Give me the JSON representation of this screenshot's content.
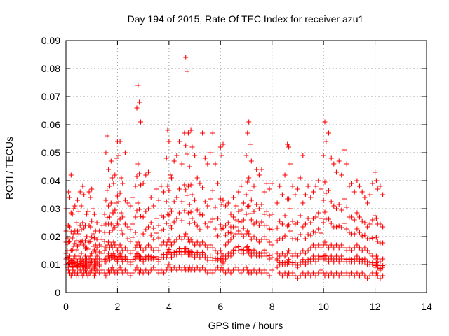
{
  "chart_data": {
    "type": "scatter",
    "title": "Day 194 of 2015, Rate Of TEC Index for receiver azu1",
    "xlabel": "GPS time / hours",
    "ylabel": "ROTI / TECUs",
    "xlim": [
      0,
      14
    ],
    "ylim": [
      0,
      0.09
    ],
    "xticks": [
      0,
      2,
      4,
      6,
      8,
      10,
      12,
      14
    ],
    "xtick_labels": [
      "0",
      "2",
      "4",
      "6",
      "8",
      "10",
      "12",
      "14"
    ],
    "yticks": [
      0,
      0.01,
      0.02,
      0.03,
      0.04,
      0.05,
      0.06,
      0.07,
      0.08,
      0.09
    ],
    "ytick_labels": [
      "0",
      "0.01",
      "0.02",
      "0.03",
      "0.04",
      "0.05",
      "0.06",
      "0.07",
      "0.08",
      "0.09"
    ],
    "grid": true,
    "marker": "+",
    "color": "#ff0000",
    "series": [
      {
        "name": "ROTI",
        "x": [
          0.0,
          0.05,
          0.1,
          0.15,
          0.2,
          0.25,
          0.3,
          0.35,
          0.4,
          0.45,
          0.5,
          0.55,
          0.6,
          0.65,
          0.7,
          0.75,
          0.8,
          0.85,
          0.9,
          0.95,
          1.0,
          1.05,
          1.1,
          1.15,
          1.2,
          1.3,
          1.4,
          1.5,
          1.55,
          1.6,
          1.65,
          1.7,
          1.75,
          1.8,
          1.85,
          1.9,
          1.95,
          2.0,
          2.05,
          2.1,
          2.15,
          2.2,
          2.3,
          2.4,
          2.5,
          2.6,
          2.7,
          2.75,
          2.8,
          2.85,
          2.9,
          3.0,
          3.1,
          3.2,
          3.3,
          3.4,
          3.5,
          3.6,
          3.7,
          3.8,
          3.9,
          3.95,
          4.0,
          4.05,
          4.1,
          4.2,
          4.3,
          4.4,
          4.5,
          4.6,
          4.65,
          4.7,
          4.75,
          4.8,
          4.85,
          4.9,
          5.0,
          5.1,
          5.2,
          5.3,
          5.4,
          5.5,
          5.6,
          5.7,
          5.8,
          5.9,
          6.0,
          6.05,
          6.1,
          6.2,
          6.3,
          6.4,
          6.5,
          6.6,
          6.7,
          6.8,
          6.9,
          7.0,
          7.05,
          7.1,
          7.15,
          7.2,
          7.3,
          7.4,
          7.5,
          7.6,
          7.7,
          7.8,
          7.9,
          8.0,
          8.2,
          8.3,
          8.4,
          8.5,
          8.6,
          8.65,
          8.7,
          8.8,
          8.9,
          9.0,
          9.1,
          9.2,
          9.3,
          9.4,
          9.5,
          9.6,
          9.7,
          9.8,
          9.9,
          10.0,
          10.05,
          10.1,
          10.2,
          10.3,
          10.4,
          10.5,
          10.6,
          10.7,
          10.8,
          10.9,
          11.0,
          11.1,
          11.2,
          11.3,
          11.4,
          11.5,
          11.6,
          11.7,
          11.8,
          11.9,
          12.0,
          12.05,
          12.1,
          12.2,
          12.3
        ],
        "y_high": [
          0.03,
          0.024,
          0.036,
          0.034,
          0.042,
          0.028,
          0.03,
          0.031,
          0.025,
          0.033,
          0.029,
          0.036,
          0.031,
          0.038,
          0.035,
          0.024,
          0.028,
          0.029,
          0.036,
          0.034,
          0.037,
          0.03,
          0.028,
          0.022,
          0.025,
          0.022,
          0.024,
          0.028,
          0.05,
          0.056,
          0.044,
          0.038,
          0.047,
          0.041,
          0.039,
          0.042,
          0.048,
          0.054,
          0.049,
          0.054,
          0.041,
          0.039,
          0.05,
          0.032,
          0.031,
          0.034,
          0.038,
          0.066,
          0.074,
          0.068,
          0.061,
          0.039,
          0.042,
          0.043,
          0.034,
          0.031,
          0.037,
          0.033,
          0.038,
          0.036,
          0.048,
          0.058,
          0.054,
          0.042,
          0.041,
          0.047,
          0.049,
          0.054,
          0.046,
          0.057,
          0.084,
          0.079,
          0.057,
          0.045,
          0.058,
          0.052,
          0.049,
          0.041,
          0.039,
          0.057,
          0.048,
          0.046,
          0.05,
          0.057,
          0.046,
          0.039,
          0.052,
          0.049,
          0.053,
          0.031,
          0.032,
          0.028,
          0.034,
          0.031,
          0.036,
          0.038,
          0.032,
          0.049,
          0.057,
          0.061,
          0.053,
          0.047,
          0.038,
          0.044,
          0.042,
          0.044,
          0.036,
          0.039,
          0.037,
          0.039,
          0.032,
          0.038,
          0.035,
          0.042,
          0.053,
          0.052,
          0.046,
          0.038,
          0.035,
          0.037,
          0.041,
          0.049,
          0.035,
          0.038,
          0.034,
          0.036,
          0.038,
          0.04,
          0.037,
          0.049,
          0.061,
          0.054,
          0.057,
          0.048,
          0.046,
          0.043,
          0.047,
          0.042,
          0.051,
          0.046,
          0.038,
          0.039,
          0.036,
          0.04,
          0.038,
          0.036,
          0.034,
          0.032,
          0.035,
          0.039,
          0.043,
          0.04,
          0.037,
          0.038,
          0.035
        ],
        "y_typical": [
          0.014,
          0.015,
          0.012,
          0.013,
          0.015,
          0.011,
          0.012,
          0.013,
          0.012,
          0.011,
          0.013,
          0.012,
          0.014,
          0.012,
          0.011,
          0.013,
          0.012,
          0.011,
          0.012,
          0.013,
          0.014,
          0.012,
          0.011,
          0.012,
          0.013,
          0.012,
          0.014,
          0.015,
          0.016,
          0.017,
          0.018,
          0.016,
          0.017,
          0.016,
          0.018,
          0.017,
          0.016,
          0.015,
          0.016,
          0.017,
          0.016,
          0.015,
          0.016,
          0.015,
          0.014,
          0.015,
          0.016,
          0.017,
          0.018,
          0.017,
          0.016,
          0.015,
          0.016,
          0.017,
          0.016,
          0.015,
          0.016,
          0.015,
          0.017,
          0.018,
          0.017,
          0.018,
          0.019,
          0.018,
          0.017,
          0.018,
          0.019,
          0.02,
          0.019,
          0.02,
          0.021,
          0.02,
          0.019,
          0.018,
          0.019,
          0.018,
          0.017,
          0.018,
          0.017,
          0.018,
          0.017,
          0.016,
          0.017,
          0.016,
          0.015,
          0.014,
          0.015,
          0.014,
          0.013,
          0.017,
          0.018,
          0.019,
          0.02,
          0.021,
          0.022,
          0.021,
          0.02,
          0.021,
          0.022,
          0.021,
          0.02,
          0.019,
          0.02,
          0.019,
          0.018,
          0.019,
          0.02,
          0.019,
          0.018,
          0.017,
          0.014,
          0.013,
          0.014,
          0.013,
          0.014,
          0.015,
          0.014,
          0.013,
          0.014,
          0.013,
          0.014,
          0.015,
          0.014,
          0.015,
          0.016,
          0.017,
          0.016,
          0.017,
          0.016,
          0.017,
          0.018,
          0.017,
          0.016,
          0.017,
          0.016,
          0.017,
          0.016,
          0.017,
          0.016,
          0.015,
          0.016,
          0.015,
          0.016,
          0.017,
          0.016,
          0.015,
          0.016,
          0.015,
          0.014,
          0.013,
          0.012,
          0.013,
          0.012,
          0.011,
          0.012
        ],
        "y_low": [
          0.01,
          0.009,
          0.008,
          0.007,
          0.006,
          0.007,
          0.008,
          0.007,
          0.006,
          0.007,
          0.006,
          0.008,
          0.007,
          0.006,
          0.007,
          0.008,
          0.007,
          0.006,
          0.007,
          0.007,
          0.008,
          0.007,
          0.006,
          0.007,
          0.008,
          0.007,
          0.008,
          0.007,
          0.006,
          0.007,
          0.008,
          0.007,
          0.008,
          0.009,
          0.008,
          0.007,
          0.008,
          0.007,
          0.008,
          0.009,
          0.008,
          0.007,
          0.008,
          0.007,
          0.006,
          0.007,
          0.008,
          0.009,
          0.008,
          0.007,
          0.008,
          0.007,
          0.008,
          0.007,
          0.008,
          0.009,
          0.008,
          0.007,
          0.008,
          0.007,
          0.008,
          0.009,
          0.01,
          0.009,
          0.008,
          0.009,
          0.008,
          0.009,
          0.008,
          0.009,
          0.008,
          0.009,
          0.008,
          0.009,
          0.008,
          0.009,
          0.008,
          0.009,
          0.008,
          0.009,
          0.008,
          0.007,
          0.008,
          0.007,
          0.008,
          0.009,
          0.008,
          0.009,
          0.008,
          0.007,
          0.008,
          0.007,
          0.008,
          0.009,
          0.008,
          0.007,
          0.008,
          0.009,
          0.008,
          0.007,
          0.008,
          0.007,
          0.008,
          0.007,
          0.008,
          0.007,
          0.008,
          0.007,
          0.006,
          0.008,
          0.009,
          0.007,
          0.006,
          0.007,
          0.006,
          0.007,
          0.006,
          0.007,
          0.006,
          0.005,
          0.006,
          0.007,
          0.006,
          0.007,
          0.006,
          0.007,
          0.006,
          0.007,
          0.008,
          0.007,
          0.006,
          0.007,
          0.006,
          0.007,
          0.006,
          0.007,
          0.006,
          0.007,
          0.006,
          0.007,
          0.006,
          0.007,
          0.006,
          0.007,
          0.006,
          0.007,
          0.006,
          0.005,
          0.006,
          0.007,
          0.006,
          0.007,
          0.006,
          0.005,
          0.006
        ]
      }
    ]
  }
}
